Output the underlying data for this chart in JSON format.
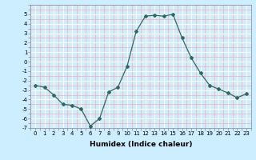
{
  "xlabel": "Humidex (Indice chaleur)",
  "x": [
    0,
    1,
    2,
    3,
    4,
    5,
    6,
    7,
    8,
    9,
    10,
    11,
    12,
    13,
    14,
    15,
    16,
    17,
    18,
    19,
    20,
    21,
    22,
    23
  ],
  "y": [
    -2.5,
    -2.7,
    -3.5,
    -4.5,
    -4.6,
    -5.0,
    -6.8,
    -6.0,
    -3.2,
    -2.7,
    -0.5,
    3.2,
    4.8,
    4.9,
    4.8,
    5.0,
    2.5,
    0.4,
    -1.2,
    -2.5,
    -2.9,
    -3.3,
    -3.8,
    -3.4
  ],
  "line_color": "#2e6b5e",
  "marker": "D",
  "marker_size": 2,
  "bg_color": "#cceeff",
  "grid_color_major": "#ffffff",
  "grid_color_minor": "#ffaaaa",
  "ylim": [
    -7,
    6
  ],
  "xlim": [
    -0.5,
    23.5
  ],
  "yticks": [
    -7,
    -6,
    -5,
    -4,
    -3,
    -2,
    -1,
    0,
    1,
    2,
    3,
    4,
    5
  ],
  "xticks": [
    0,
    1,
    2,
    3,
    4,
    5,
    6,
    7,
    8,
    9,
    10,
    11,
    12,
    13,
    14,
    15,
    16,
    17,
    18,
    19,
    20,
    21,
    22,
    23
  ],
  "tick_fontsize": 5,
  "xlabel_fontsize": 6.5
}
